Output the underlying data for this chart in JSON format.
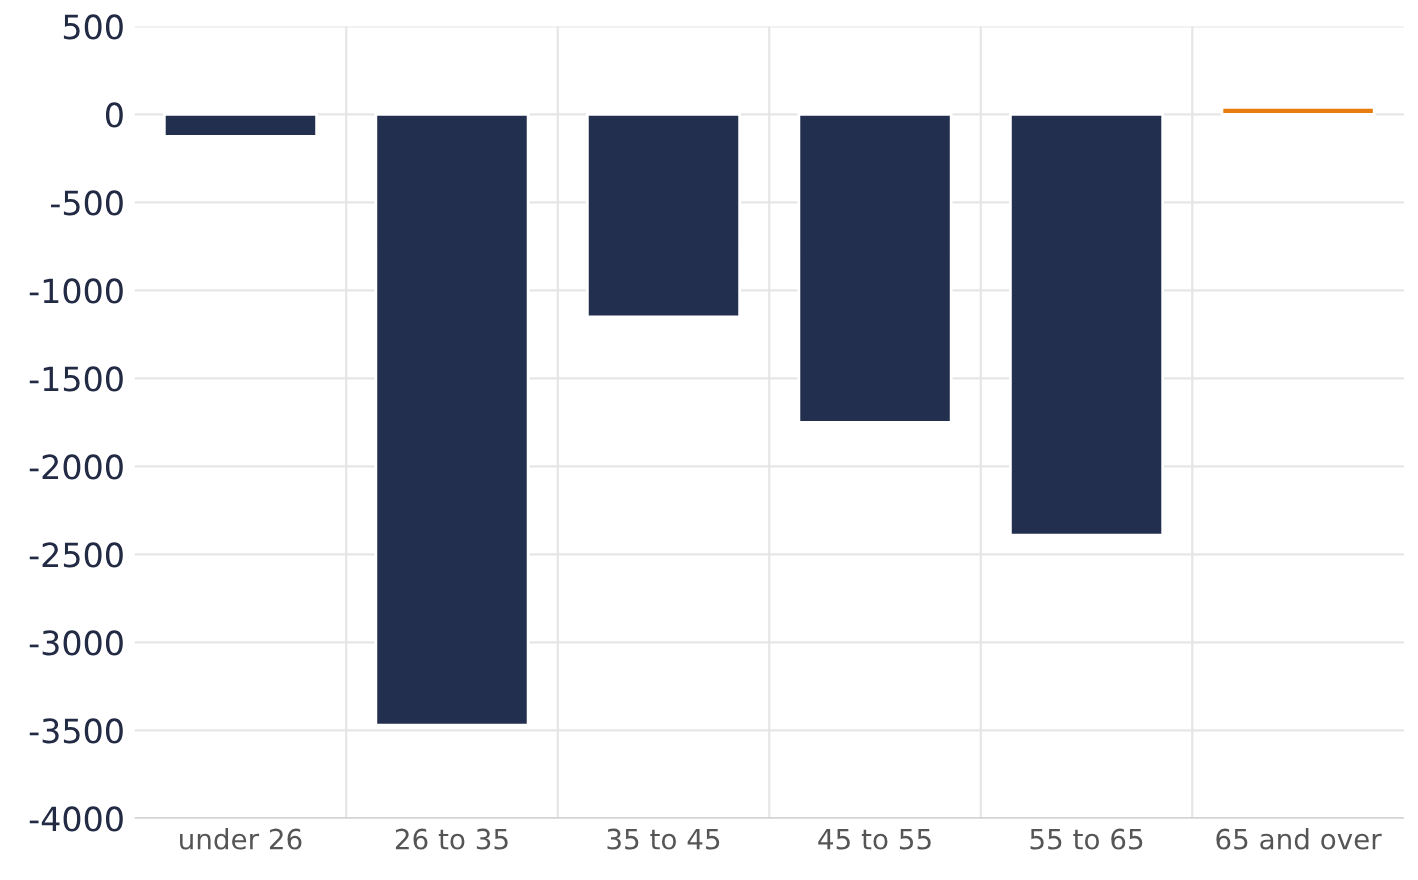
{
  "chart_data": {
    "type": "bar",
    "categories": [
      "under 26",
      "26 to 35",
      "35 to 45",
      "45 to 55",
      "55 to 65",
      "65 and over"
    ],
    "values": [
      -125,
      -3470,
      -1150,
      -1750,
      -2390,
      40
    ],
    "colors": [
      "#232f4e",
      "#232f4e",
      "#232f4e",
      "#232f4e",
      "#232f4e",
      "#e87d0f"
    ],
    "ylim": [
      -4000,
      500
    ],
    "yticks": [
      -4000,
      -3500,
      -3000,
      -2500,
      -2000,
      -1500,
      -1000,
      -500,
      0,
      500
    ],
    "grid": true
  }
}
